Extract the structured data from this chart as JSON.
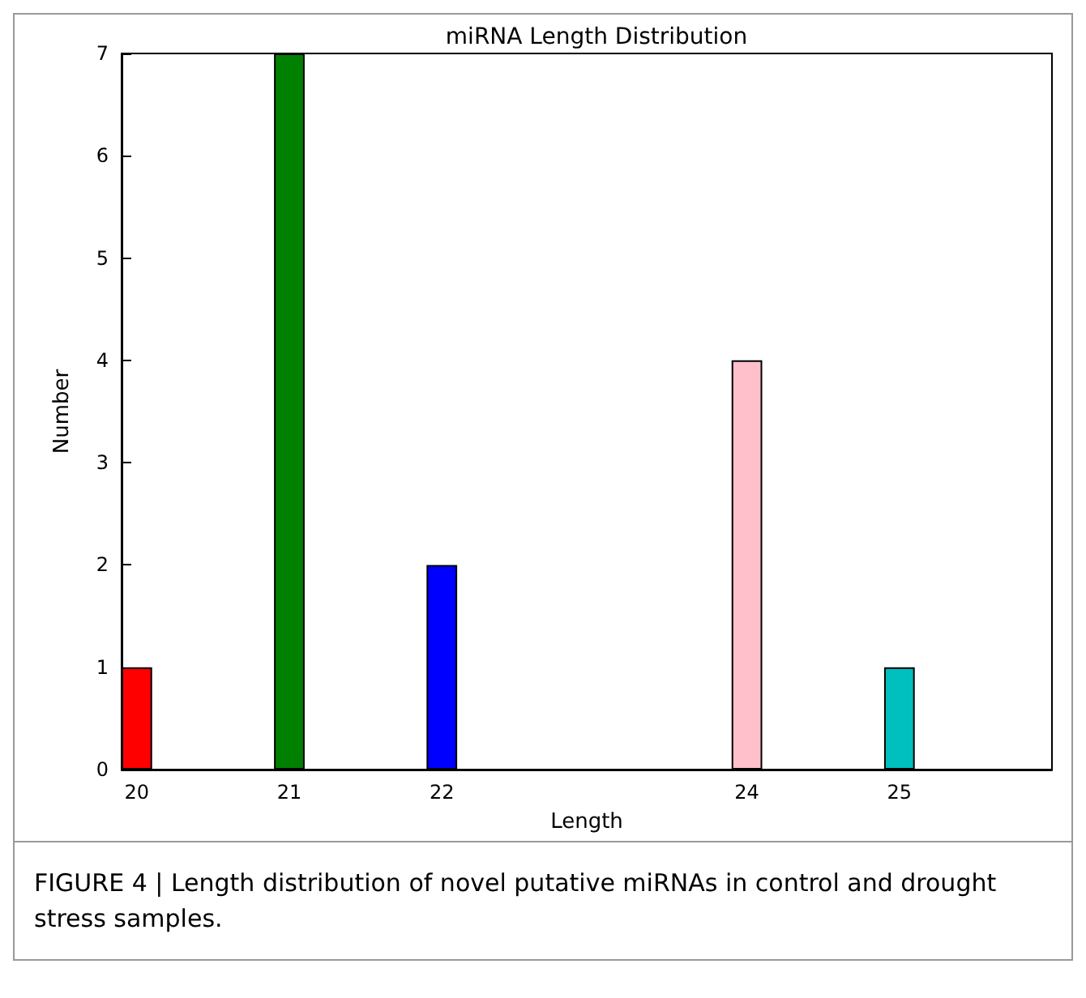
{
  "chart_data": {
    "type": "bar",
    "title": "miRNA Length Distribution",
    "xlabel": "Length",
    "ylabel": "Number",
    "x": [
      20,
      21,
      22,
      24,
      25
    ],
    "values": [
      1,
      7,
      2,
      4,
      1
    ],
    "colors": [
      "#ff0000",
      "#008000",
      "#0000ff",
      "#ffc0cb",
      "#00bfbf"
    ],
    "xlim": [
      19.9,
      26
    ],
    "xticks": [
      20,
      21,
      22,
      24,
      25
    ],
    "ylim": [
      0,
      7
    ],
    "yticks": [
      0,
      1,
      2,
      3,
      4,
      5,
      6,
      7
    ],
    "grid": false,
    "annotations": [
      "FIGURE 4 | Length distribution of novel putative miRNAs in control and drought stress samples."
    ]
  }
}
